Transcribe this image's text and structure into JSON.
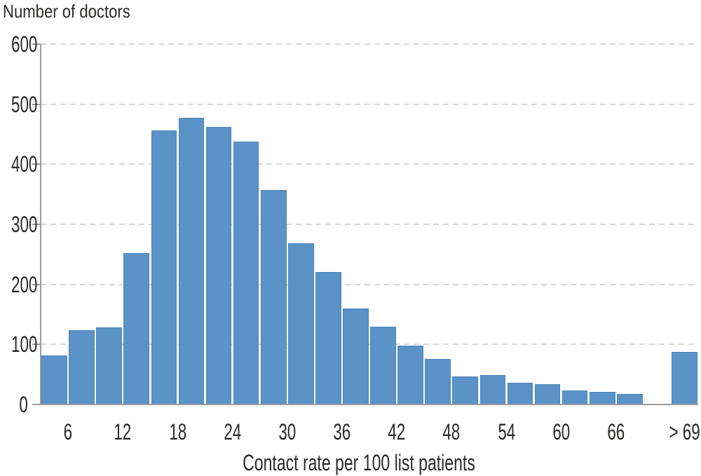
{
  "colors": {
    "bar_fill": "#5b93c8",
    "bar_edge": "#4c86bb",
    "axis": "#9b9b9b",
    "grid": "#d7d7d7",
    "text": "#2b2a28"
  },
  "chart_data": {
    "type": "bar",
    "title": "Number of doctors",
    "xlabel": "Contact rate per 100 list patients",
    "ylabel": "Number of doctors",
    "ylim": [
      0,
      600
    ],
    "yticks": [
      0,
      100,
      200,
      300,
      400,
      500,
      600
    ],
    "grid": "horizontal dashed",
    "legend": "none",
    "bin_width": 3,
    "slots": 24,
    "bars": [
      {
        "range": "3-6",
        "slot": 0,
        "value": 82
      },
      {
        "range": "6-9",
        "slot": 1,
        "value": 124
      },
      {
        "range": "9-12",
        "slot": 2,
        "value": 129
      },
      {
        "range": "12-15",
        "slot": 3,
        "value": 252
      },
      {
        "range": "15-18",
        "slot": 4,
        "value": 456
      },
      {
        "range": "18-21",
        "slot": 5,
        "value": 478
      },
      {
        "range": "21-24",
        "slot": 6,
        "value": 462
      },
      {
        "range": "24-27",
        "slot": 7,
        "value": 438
      },
      {
        "range": "27-30",
        "slot": 8,
        "value": 357
      },
      {
        "range": "30-33",
        "slot": 9,
        "value": 269
      },
      {
        "range": "33-36",
        "slot": 10,
        "value": 221
      },
      {
        "range": "36-39",
        "slot": 11,
        "value": 160
      },
      {
        "range": "39-42",
        "slot": 12,
        "value": 130
      },
      {
        "range": "42-45",
        "slot": 13,
        "value": 98
      },
      {
        "range": "45-48",
        "slot": 14,
        "value": 76
      },
      {
        "range": "48-51",
        "slot": 15,
        "value": 47
      },
      {
        "range": "51-54",
        "slot": 16,
        "value": 49
      },
      {
        "range": "54-57",
        "slot": 17,
        "value": 36
      },
      {
        "range": "57-60",
        "slot": 18,
        "value": 34
      },
      {
        "range": "60-63",
        "slot": 19,
        "value": 23
      },
      {
        "range": "63-66",
        "slot": 20,
        "value": 21
      },
      {
        "range": "66-69",
        "slot": 21,
        "value": 18
      },
      {
        "range": "> 69",
        "slot": 23,
        "value": 87
      }
    ],
    "xticks": [
      {
        "label": "6",
        "boundary_slot": 1
      },
      {
        "label": "12",
        "boundary_slot": 3
      },
      {
        "label": "18",
        "boundary_slot": 5
      },
      {
        "label": "24",
        "boundary_slot": 7
      },
      {
        "label": "30",
        "boundary_slot": 9
      },
      {
        "label": "36",
        "boundary_slot": 11
      },
      {
        "label": "42",
        "boundary_slot": 13
      },
      {
        "label": "48",
        "boundary_slot": 15
      },
      {
        "label": "54",
        "boundary_slot": 17
      },
      {
        "label": "60",
        "boundary_slot": 19
      },
      {
        "label": "66",
        "boundary_slot": 21
      },
      {
        "label": "> 69",
        "center_slot": 23
      }
    ]
  }
}
